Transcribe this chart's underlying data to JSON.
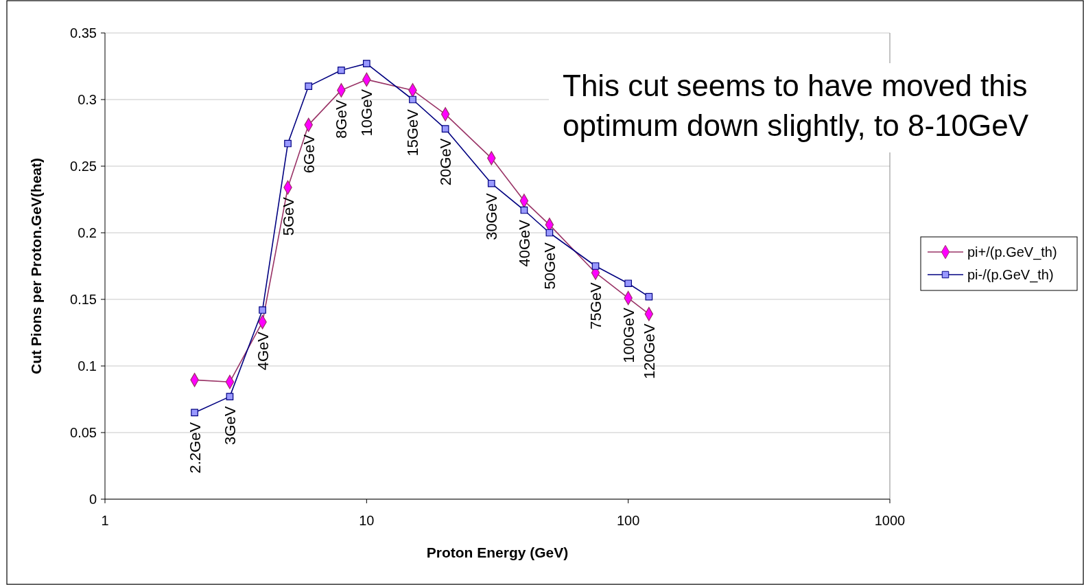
{
  "chart_data": {
    "type": "line",
    "xlabel": "Proton Energy (GeV)",
    "ylabel": "Cut Pions per Proton.GeV(heat)",
    "log": "x",
    "xlim": [
      1,
      1000
    ],
    "xticks": [
      1,
      10,
      100,
      1000
    ],
    "ylim": [
      0,
      0.35
    ],
    "yticks": [
      0,
      0.05,
      0.1,
      0.15,
      0.2,
      0.25,
      0.3,
      0.35
    ],
    "grid": "y",
    "legend": "right",
    "line_style": "solid",
    "x": [
      2.2,
      3,
      4,
      5,
      6,
      8,
      10,
      15,
      20,
      30,
      40,
      50,
      75,
      100,
      120
    ],
    "series": [
      {
        "name": "pi+/(p.GeV_th)",
        "color": "#993366",
        "marker": "diamond",
        "colors": [
          "#ff00ff",
          "#ff00ff",
          "#ff00ff",
          "#ff00ff",
          "#ff00ff",
          "#ff00ff",
          "#ff00ff",
          "#ff00ff",
          "#ff00ff",
          "#ff00ff",
          "#ff00ff",
          "#ff00ff",
          "#ff00ff",
          "#ff00ff",
          "#ff00ff"
        ],
        "values": [
          0.0895,
          0.088,
          0.133,
          0.234,
          0.281,
          0.307,
          0.315,
          0.307,
          0.289,
          0.256,
          0.224,
          0.206,
          0.17,
          0.151,
          0.139
        ]
      },
      {
        "name": "pi-/(p.GeV_th)",
        "color": "#000080",
        "marker": "square",
        "colors": [
          "#9999ff",
          "#9999ff",
          "#9999ff",
          "#9999ff",
          "#9999ff",
          "#9999ff",
          "#9999ff",
          "#9999ff",
          "#9999ff",
          "#9999ff",
          "#9999ff",
          "#9999ff",
          "#9999ff",
          "#9999ff",
          "#9999ff"
        ],
        "values": [
          0.065,
          0.077,
          0.142,
          0.267,
          0.31,
          0.322,
          0.327,
          0.3,
          0.278,
          0.237,
          0.217,
          0.2,
          0.175,
          0.162,
          0.152
        ]
      }
    ],
    "annotations": [
      {
        "text": "2.2GeV",
        "x": 2.2,
        "y": 0.065
      },
      {
        "text": "3GeV",
        "x": 3,
        "y": 0.077
      },
      {
        "text": "4GeV",
        "x": 4,
        "y": 0.133
      },
      {
        "text": "5GeV",
        "x": 5,
        "y": 0.234
      },
      {
        "text": "6GeV",
        "x": 6,
        "y": 0.281
      },
      {
        "text": "8GeV",
        "x": 8,
        "y": 0.307
      },
      {
        "text": "10GeV",
        "x": 10,
        "y": 0.315
      },
      {
        "text": "15GeV",
        "x": 15,
        "y": 0.3
      },
      {
        "text": "20GeV",
        "x": 20,
        "y": 0.278
      },
      {
        "text": "30GeV",
        "x": 30,
        "y": 0.237
      },
      {
        "text": "40GeV",
        "x": 40,
        "y": 0.217
      },
      {
        "text": "50GeV",
        "x": 50,
        "y": 0.2
      },
      {
        "text": "75GeV",
        "x": 75,
        "y": 0.17
      },
      {
        "text": "100GeV",
        "x": 100,
        "y": 0.151
      },
      {
        "text": "120GeV",
        "x": 120,
        "y": 0.139
      },
      "This cut seems to have moved this optimum down slightly, to 8-10GeV"
    ]
  }
}
